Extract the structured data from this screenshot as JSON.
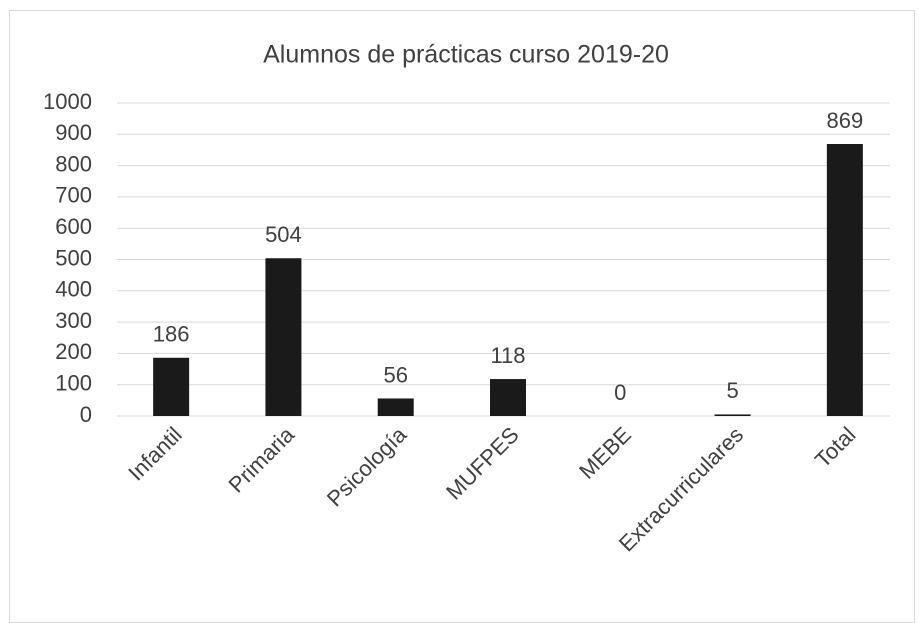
{
  "chart_data": {
    "type": "bar",
    "title": "Alumnos de prácticas curso 2019-20",
    "categories": [
      "Infantil",
      "Primaria",
      "Psicología",
      "MUFPES",
      "MEBE",
      "Extracurriculares",
      "Total"
    ],
    "values": [
      186,
      504,
      56,
      118,
      0,
      5,
      869
    ],
    "color": "#1a1a1a",
    "ylim": [
      0,
      1000
    ],
    "yticks": [
      0,
      100,
      200,
      300,
      400,
      500,
      600,
      700,
      800,
      900,
      1000
    ],
    "grid": true
  }
}
